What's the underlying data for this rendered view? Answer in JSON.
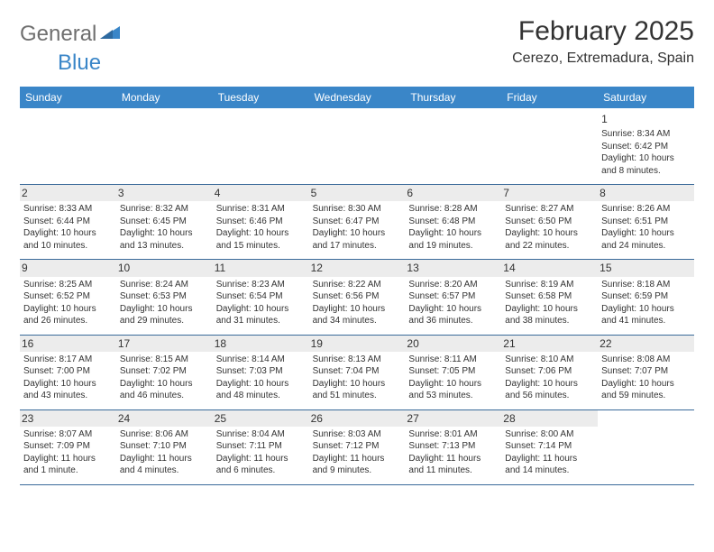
{
  "brand": {
    "general": "General",
    "blue": "Blue"
  },
  "title": "February 2025",
  "subtitle": "Cerezo, Extremadura, Spain",
  "colors": {
    "header_bg": "#3a86c8",
    "header_fg": "#ffffff",
    "rule": "#3a6a9a",
    "shade": "#ececec",
    "text": "#333333",
    "logo_gray": "#6f6f6f",
    "logo_blue": "#3a86c8"
  },
  "fonts": {
    "title_pt": 30,
    "subtitle_pt": 16,
    "dayhead_pt": 12,
    "cell_pt": 10,
    "num_pt": 12
  },
  "dayNames": [
    "Sunday",
    "Monday",
    "Tuesday",
    "Wednesday",
    "Thursday",
    "Friday",
    "Saturday"
  ],
  "weeks": [
    [
      null,
      null,
      null,
      null,
      null,
      null,
      {
        "n": "1",
        "sr": "Sunrise: 8:34 AM",
        "ss": "Sunset: 6:42 PM",
        "dl": "Daylight: 10 hours and 8 minutes.",
        "shade": false
      }
    ],
    [
      {
        "n": "2",
        "sr": "Sunrise: 8:33 AM",
        "ss": "Sunset: 6:44 PM",
        "dl": "Daylight: 10 hours and 10 minutes.",
        "shade": true
      },
      {
        "n": "3",
        "sr": "Sunrise: 8:32 AM",
        "ss": "Sunset: 6:45 PM",
        "dl": "Daylight: 10 hours and 13 minutes.",
        "shade": true
      },
      {
        "n": "4",
        "sr": "Sunrise: 8:31 AM",
        "ss": "Sunset: 6:46 PM",
        "dl": "Daylight: 10 hours and 15 minutes.",
        "shade": true
      },
      {
        "n": "5",
        "sr": "Sunrise: 8:30 AM",
        "ss": "Sunset: 6:47 PM",
        "dl": "Daylight: 10 hours and 17 minutes.",
        "shade": true
      },
      {
        "n": "6",
        "sr": "Sunrise: 8:28 AM",
        "ss": "Sunset: 6:48 PM",
        "dl": "Daylight: 10 hours and 19 minutes.",
        "shade": true
      },
      {
        "n": "7",
        "sr": "Sunrise: 8:27 AM",
        "ss": "Sunset: 6:50 PM",
        "dl": "Daylight: 10 hours and 22 minutes.",
        "shade": true
      },
      {
        "n": "8",
        "sr": "Sunrise: 8:26 AM",
        "ss": "Sunset: 6:51 PM",
        "dl": "Daylight: 10 hours and 24 minutes.",
        "shade": true
      }
    ],
    [
      {
        "n": "9",
        "sr": "Sunrise: 8:25 AM",
        "ss": "Sunset: 6:52 PM",
        "dl": "Daylight: 10 hours and 26 minutes.",
        "shade": true
      },
      {
        "n": "10",
        "sr": "Sunrise: 8:24 AM",
        "ss": "Sunset: 6:53 PM",
        "dl": "Daylight: 10 hours and 29 minutes.",
        "shade": true
      },
      {
        "n": "11",
        "sr": "Sunrise: 8:23 AM",
        "ss": "Sunset: 6:54 PM",
        "dl": "Daylight: 10 hours and 31 minutes.",
        "shade": true
      },
      {
        "n": "12",
        "sr": "Sunrise: 8:22 AM",
        "ss": "Sunset: 6:56 PM",
        "dl": "Daylight: 10 hours and 34 minutes.",
        "shade": true
      },
      {
        "n": "13",
        "sr": "Sunrise: 8:20 AM",
        "ss": "Sunset: 6:57 PM",
        "dl": "Daylight: 10 hours and 36 minutes.",
        "shade": true
      },
      {
        "n": "14",
        "sr": "Sunrise: 8:19 AM",
        "ss": "Sunset: 6:58 PM",
        "dl": "Daylight: 10 hours and 38 minutes.",
        "shade": true
      },
      {
        "n": "15",
        "sr": "Sunrise: 8:18 AM",
        "ss": "Sunset: 6:59 PM",
        "dl": "Daylight: 10 hours and 41 minutes.",
        "shade": true
      }
    ],
    [
      {
        "n": "16",
        "sr": "Sunrise: 8:17 AM",
        "ss": "Sunset: 7:00 PM",
        "dl": "Daylight: 10 hours and 43 minutes.",
        "shade": true
      },
      {
        "n": "17",
        "sr": "Sunrise: 8:15 AM",
        "ss": "Sunset: 7:02 PM",
        "dl": "Daylight: 10 hours and 46 minutes.",
        "shade": true
      },
      {
        "n": "18",
        "sr": "Sunrise: 8:14 AM",
        "ss": "Sunset: 7:03 PM",
        "dl": "Daylight: 10 hours and 48 minutes.",
        "shade": true
      },
      {
        "n": "19",
        "sr": "Sunrise: 8:13 AM",
        "ss": "Sunset: 7:04 PM",
        "dl": "Daylight: 10 hours and 51 minutes.",
        "shade": true
      },
      {
        "n": "20",
        "sr": "Sunrise: 8:11 AM",
        "ss": "Sunset: 7:05 PM",
        "dl": "Daylight: 10 hours and 53 minutes.",
        "shade": true
      },
      {
        "n": "21",
        "sr": "Sunrise: 8:10 AM",
        "ss": "Sunset: 7:06 PM",
        "dl": "Daylight: 10 hours and 56 minutes.",
        "shade": true
      },
      {
        "n": "22",
        "sr": "Sunrise: 8:08 AM",
        "ss": "Sunset: 7:07 PM",
        "dl": "Daylight: 10 hours and 59 minutes.",
        "shade": true
      }
    ],
    [
      {
        "n": "23",
        "sr": "Sunrise: 8:07 AM",
        "ss": "Sunset: 7:09 PM",
        "dl": "Daylight: 11 hours and 1 minute.",
        "shade": true
      },
      {
        "n": "24",
        "sr": "Sunrise: 8:06 AM",
        "ss": "Sunset: 7:10 PM",
        "dl": "Daylight: 11 hours and 4 minutes.",
        "shade": true
      },
      {
        "n": "25",
        "sr": "Sunrise: 8:04 AM",
        "ss": "Sunset: 7:11 PM",
        "dl": "Daylight: 11 hours and 6 minutes.",
        "shade": true
      },
      {
        "n": "26",
        "sr": "Sunrise: 8:03 AM",
        "ss": "Sunset: 7:12 PM",
        "dl": "Daylight: 11 hours and 9 minutes.",
        "shade": true
      },
      {
        "n": "27",
        "sr": "Sunrise: 8:01 AM",
        "ss": "Sunset: 7:13 PM",
        "dl": "Daylight: 11 hours and 11 minutes.",
        "shade": true
      },
      {
        "n": "28",
        "sr": "Sunrise: 8:00 AM",
        "ss": "Sunset: 7:14 PM",
        "dl": "Daylight: 11 hours and 14 minutes.",
        "shade": true
      },
      null
    ]
  ]
}
